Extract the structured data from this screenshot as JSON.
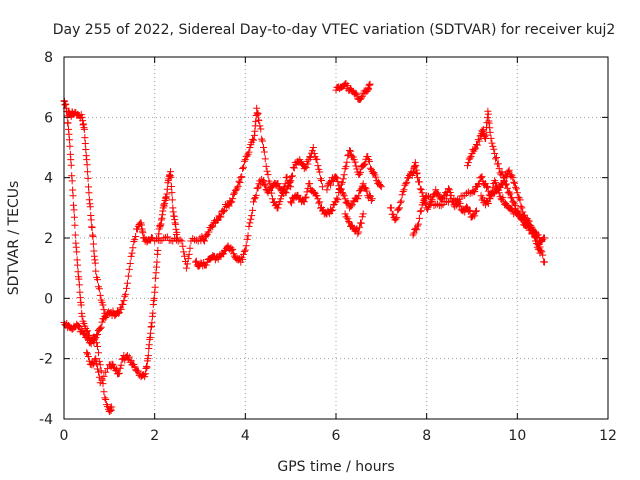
{
  "chart_data": {
    "type": "scatter",
    "title": "Day 255 of 2022, Sidereal Day-to-day VTEC variation (SDTVAR) for receiver kuj2",
    "xlabel": "GPS time / hours",
    "ylabel": "SDTVAR / TECUs",
    "xlim": [
      0,
      12
    ],
    "ylim": [
      -4,
      8
    ],
    "x_ticks": [
      0,
      2,
      4,
      6,
      8,
      10,
      12
    ],
    "y_ticks": [
      -4,
      -2,
      0,
      2,
      4,
      6,
      8
    ],
    "marker": "+",
    "grid": true,
    "series": [
      {
        "name": "SDTVAR",
        "color": "#ff0000",
        "trace_points": [
          [
            0.0,
            6.55
          ],
          [
            0.05,
            6.3
          ],
          [
            0.1,
            5.6
          ],
          [
            0.15,
            4.6
          ],
          [
            0.2,
            3.4
          ],
          [
            0.25,
            2.1
          ],
          [
            0.3,
            1.1
          ],
          [
            0.35,
            0.2
          ],
          [
            0.4,
            -0.6
          ],
          [
            0.5,
            -1.1
          ],
          [
            0.6,
            -1.4
          ],
          [
            0.7,
            -1.3
          ],
          [
            0.8,
            -2.2
          ],
          [
            0.9,
            -3.3
          ],
          [
            1.0,
            -3.75
          ],
          [
            1.05,
            -3.6
          ],
          [
            0.0,
            -0.8
          ],
          [
            0.1,
            -0.9
          ],
          [
            0.2,
            -1.0
          ],
          [
            0.3,
            -0.9
          ],
          [
            0.4,
            -1.1
          ],
          [
            0.5,
            -1.3
          ],
          [
            0.6,
            -1.5
          ],
          [
            0.7,
            -1.3
          ],
          [
            0.8,
            -1.0
          ],
          [
            0.9,
            -0.6
          ],
          [
            1.0,
            -0.5
          ],
          [
            1.1,
            -0.5
          ],
          [
            1.2,
            -0.5
          ],
          [
            1.3,
            -0.2
          ],
          [
            1.4,
            0.5
          ],
          [
            1.5,
            1.5
          ],
          [
            1.6,
            2.3
          ],
          [
            1.7,
            2.5
          ],
          [
            1.75,
            2.0
          ],
          [
            1.85,
            1.9
          ],
          [
            1.95,
            2.0
          ],
          [
            0.1,
            6.2
          ],
          [
            0.15,
            6.1
          ],
          [
            0.2,
            6.1
          ],
          [
            0.3,
            6.1
          ],
          [
            0.4,
            6.0
          ],
          [
            0.45,
            5.6
          ],
          [
            0.5,
            4.6
          ],
          [
            0.55,
            3.5
          ],
          [
            0.6,
            2.6
          ],
          [
            0.65,
            1.8
          ],
          [
            0.7,
            0.9
          ],
          [
            0.8,
            0.1
          ],
          [
            0.9,
            -0.5
          ],
          [
            0.5,
            -1.8
          ],
          [
            0.6,
            -2.2
          ],
          [
            0.7,
            -2.0
          ],
          [
            0.8,
            -2.8
          ],
          [
            1.0,
            -2.2
          ],
          [
            1.1,
            -2.3
          ],
          [
            1.2,
            -2.5
          ],
          [
            1.3,
            -2.0
          ],
          [
            1.4,
            -1.9
          ],
          [
            1.5,
            -2.2
          ],
          [
            1.6,
            -2.4
          ],
          [
            1.7,
            -2.6
          ],
          [
            1.8,
            -2.5
          ],
          [
            1.85,
            -2.0
          ],
          [
            1.9,
            -1.3
          ],
          [
            1.95,
            -0.6
          ],
          [
            2.0,
            0.2
          ],
          [
            2.05,
            1.2
          ],
          [
            2.1,
            2.3
          ],
          [
            2.15,
            2.6
          ],
          [
            2.2,
            3.1
          ],
          [
            2.25,
            3.3
          ],
          [
            2.3,
            3.9
          ],
          [
            2.35,
            4.2
          ],
          [
            2.4,
            3.0
          ],
          [
            2.45,
            2.5
          ],
          [
            2.5,
            2.0
          ],
          [
            2.0,
            1.9
          ],
          [
            2.2,
            2.0
          ],
          [
            2.4,
            1.9
          ],
          [
            2.6,
            1.9
          ],
          [
            2.7,
            1.0
          ],
          [
            2.8,
            1.9
          ],
          [
            3.0,
            2.0
          ],
          [
            3.1,
            1.9
          ],
          [
            3.2,
            2.2
          ],
          [
            3.3,
            2.5
          ],
          [
            3.4,
            2.6
          ],
          [
            3.5,
            2.9
          ],
          [
            3.6,
            3.1
          ],
          [
            3.7,
            3.2
          ],
          [
            3.8,
            3.6
          ],
          [
            3.9,
            4.0
          ],
          [
            4.0,
            4.6
          ],
          [
            4.1,
            5.0
          ],
          [
            4.2,
            5.4
          ],
          [
            4.25,
            6.3
          ],
          [
            4.3,
            5.9
          ],
          [
            4.4,
            5.0
          ],
          [
            4.5,
            4.1
          ],
          [
            4.6,
            3.3
          ],
          [
            4.7,
            3.0
          ],
          [
            4.8,
            3.4
          ],
          [
            4.9,
            4.0
          ],
          [
            5.0,
            3.7
          ],
          [
            2.9,
            1.2
          ],
          [
            3.0,
            1.1
          ],
          [
            3.1,
            1.1
          ],
          [
            3.2,
            1.3
          ],
          [
            3.3,
            1.4
          ],
          [
            3.4,
            1.3
          ],
          [
            3.5,
            1.5
          ],
          [
            3.6,
            1.7
          ],
          [
            3.7,
            1.6
          ],
          [
            3.8,
            1.3
          ],
          [
            3.9,
            1.2
          ],
          [
            4.0,
            1.6
          ],
          [
            4.1,
            2.5
          ],
          [
            4.2,
            3.3
          ],
          [
            4.3,
            3.8
          ],
          [
            4.4,
            3.9
          ],
          [
            4.5,
            3.5
          ],
          [
            4.6,
            3.7
          ],
          [
            4.7,
            3.8
          ],
          [
            4.8,
            3.6
          ],
          [
            4.9,
            3.5
          ],
          [
            5.0,
            3.9
          ],
          [
            5.1,
            4.5
          ],
          [
            5.2,
            4.6
          ],
          [
            5.3,
            4.3
          ],
          [
            5.4,
            4.6
          ],
          [
            5.5,
            5.0
          ],
          [
            5.6,
            4.4
          ],
          [
            5.7,
            3.7
          ],
          [
            5.0,
            3.2
          ],
          [
            5.1,
            3.4
          ],
          [
            5.2,
            3.3
          ],
          [
            5.3,
            3.2
          ],
          [
            5.4,
            3.8
          ],
          [
            5.5,
            3.5
          ],
          [
            5.6,
            3.3
          ],
          [
            5.7,
            2.9
          ],
          [
            5.8,
            2.8
          ],
          [
            5.9,
            2.9
          ],
          [
            6.0,
            3.2
          ],
          [
            6.1,
            3.6
          ],
          [
            6.2,
            4.3
          ],
          [
            6.3,
            4.9
          ],
          [
            6.4,
            4.6
          ],
          [
            6.5,
            4.1
          ],
          [
            6.6,
            4.4
          ],
          [
            6.7,
            4.7
          ],
          [
            6.8,
            4.2
          ],
          [
            6.9,
            3.9
          ],
          [
            7.0,
            3.7
          ],
          [
            5.8,
            3.6
          ],
          [
            5.9,
            3.9
          ],
          [
            6.0,
            4.0
          ],
          [
            6.1,
            3.6
          ],
          [
            6.2,
            3.3
          ],
          [
            6.3,
            3.0
          ],
          [
            6.4,
            3.2
          ],
          [
            6.5,
            3.4
          ],
          [
            6.6,
            3.8
          ],
          [
            6.7,
            3.4
          ],
          [
            6.8,
            3.3
          ],
          [
            6.2,
            2.8
          ],
          [
            6.3,
            2.5
          ],
          [
            6.4,
            2.3
          ],
          [
            6.5,
            2.2
          ],
          [
            6.6,
            2.8
          ],
          [
            6.0,
            6.9
          ],
          [
            6.1,
            7.0
          ],
          [
            6.2,
            7.1
          ],
          [
            6.3,
            6.9
          ],
          [
            6.4,
            6.8
          ],
          [
            6.5,
            6.6
          ],
          [
            6.6,
            6.8
          ],
          [
            6.7,
            6.9
          ],
          [
            6.75,
            7.1
          ],
          [
            7.2,
            3.0
          ],
          [
            7.3,
            2.6
          ],
          [
            7.4,
            3.0
          ],
          [
            7.5,
            3.6
          ],
          [
            7.6,
            4.0
          ],
          [
            7.7,
            4.2
          ],
          [
            7.75,
            4.5
          ],
          [
            7.8,
            4.0
          ],
          [
            7.9,
            3.5
          ],
          [
            8.0,
            3.0
          ],
          [
            8.1,
            3.2
          ],
          [
            8.2,
            3.6
          ],
          [
            8.3,
            3.3
          ],
          [
            8.4,
            3.4
          ],
          [
            8.5,
            3.6
          ],
          [
            8.6,
            3.1
          ],
          [
            8.7,
            3.2
          ],
          [
            8.8,
            2.9
          ],
          [
            8.9,
            3.0
          ],
          [
            9.0,
            2.7
          ],
          [
            9.1,
            2.9
          ],
          [
            7.7,
            2.1
          ],
          [
            7.8,
            2.4
          ],
          [
            7.9,
            3.1
          ],
          [
            8.0,
            3.4
          ],
          [
            8.2,
            3.1
          ],
          [
            8.4,
            3.2
          ],
          [
            8.6,
            3.3
          ],
          [
            8.8,
            3.4
          ],
          [
            9.0,
            3.5
          ],
          [
            9.1,
            3.7
          ],
          [
            9.2,
            4.0
          ],
          [
            9.3,
            3.8
          ],
          [
            9.4,
            3.4
          ],
          [
            9.5,
            3.5
          ],
          [
            9.6,
            3.7
          ],
          [
            9.7,
            3.9
          ],
          [
            9.8,
            4.2
          ],
          [
            9.9,
            4.0
          ],
          [
            10.0,
            3.5
          ],
          [
            10.1,
            3.0
          ],
          [
            10.2,
            2.6
          ],
          [
            10.3,
            2.4
          ],
          [
            10.4,
            2.0
          ],
          [
            10.5,
            1.7
          ],
          [
            10.6,
            1.2
          ],
          [
            8.9,
            4.4
          ],
          [
            9.0,
            4.8
          ],
          [
            9.1,
            5.1
          ],
          [
            9.2,
            5.4
          ],
          [
            9.25,
            5.6
          ],
          [
            9.3,
            5.3
          ],
          [
            9.35,
            6.2
          ],
          [
            9.4,
            5.5
          ],
          [
            9.5,
            4.8
          ],
          [
            9.6,
            4.3
          ],
          [
            9.7,
            4.0
          ],
          [
            9.8,
            3.5
          ],
          [
            9.9,
            3.2
          ],
          [
            10.0,
            2.9
          ],
          [
            10.1,
            2.7
          ],
          [
            10.2,
            2.5
          ],
          [
            10.3,
            2.3
          ],
          [
            10.4,
            2.2
          ],
          [
            10.5,
            1.9
          ],
          [
            10.6,
            2.0
          ],
          [
            9.2,
            3.4
          ],
          [
            9.3,
            3.1
          ],
          [
            9.4,
            3.3
          ],
          [
            9.5,
            3.9
          ],
          [
            9.6,
            3.5
          ],
          [
            9.7,
            3.2
          ],
          [
            9.8,
            3.0
          ],
          [
            9.9,
            2.9
          ],
          [
            10.0,
            2.8
          ],
          [
            10.1,
            2.6
          ],
          [
            10.2,
            2.4
          ],
          [
            10.3,
            2.3
          ],
          [
            10.4,
            1.9
          ],
          [
            10.5,
            1.5
          ]
        ]
      }
    ]
  }
}
